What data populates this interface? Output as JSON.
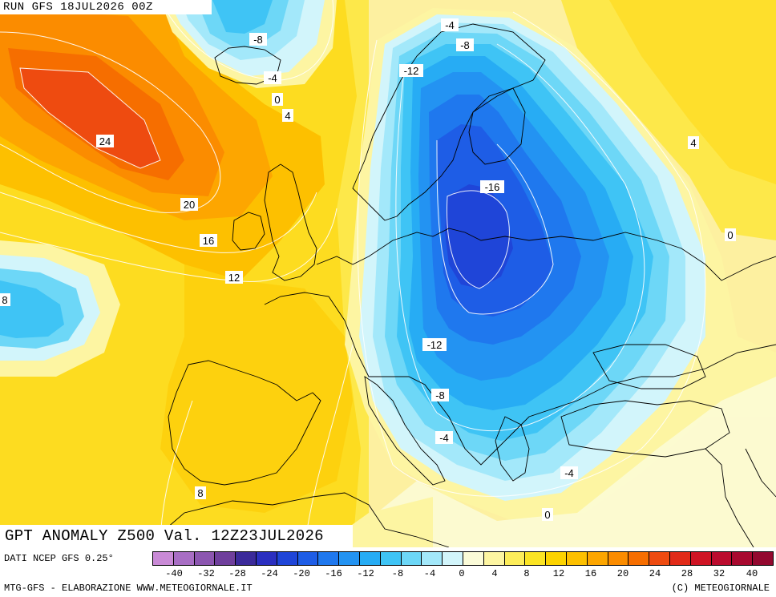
{
  "header": {
    "run_label": "RUN GFS 18JUL2026 00Z"
  },
  "title": {
    "text": "GPT ANOMALY Z500 Val. 12Z23JUL2026"
  },
  "footer": {
    "source": "DATI NCEP GFS 0.25°",
    "credit_left": "MTG-GFS - ELABORAZIONE WWW.METEOGIORNALE.IT",
    "credit_right": "(C) METEOGIORNALE"
  },
  "legend": {
    "colors": [
      "#c98ad6",
      "#a86ec4",
      "#8c56b0",
      "#6f3f9c",
      "#3b2a9a",
      "#2b2fc0",
      "#1f45d8",
      "#1e5de6",
      "#1f78ee",
      "#2393f2",
      "#27acf4",
      "#3fc4f5",
      "#6dd7f7",
      "#a3e8fa",
      "#d2f5fb",
      "#fbfbd8",
      "#fdf5a2",
      "#fded5a",
      "#fbe424",
      "#fcd300",
      "#fdc000",
      "#fda600",
      "#fb8c00",
      "#f66e00",
      "#ee4b10",
      "#e12a18",
      "#cf1424",
      "#bb0c2e",
      "#a8092f",
      "#93082f"
    ],
    "tick_labels": [
      "-40",
      "-32",
      "-28",
      "-24",
      "-20",
      "-16",
      "-12",
      "-8",
      "-4",
      "0",
      "4",
      "8",
      "12",
      "16",
      "20",
      "24",
      "28",
      "32",
      "40"
    ]
  },
  "contour_labels": [
    {
      "id": "n4-top",
      "text": "-4"
    },
    {
      "id": "n8-scand",
      "text": "-8"
    },
    {
      "id": "n8-iceland",
      "text": "-8"
    },
    {
      "id": "n4-iceland",
      "text": "-4"
    },
    {
      "id": "zero-iceland",
      "text": "0"
    },
    {
      "id": "p4-iceland",
      "text": "4"
    },
    {
      "id": "n12-norway",
      "text": "-12"
    },
    {
      "id": "p24",
      "text": "24"
    },
    {
      "id": "p4-east",
      "text": "4"
    },
    {
      "id": "n16",
      "text": "-16"
    },
    {
      "id": "p20",
      "text": "20"
    },
    {
      "id": "zero-east",
      "text": "0"
    },
    {
      "id": "p16",
      "text": "16"
    },
    {
      "id": "p12",
      "text": "12"
    },
    {
      "id": "p8-west",
      "text": "8"
    },
    {
      "id": "n12-balkan",
      "text": "-12"
    },
    {
      "id": "n8-balkan",
      "text": "-8"
    },
    {
      "id": "n4-med",
      "text": "-4"
    },
    {
      "id": "n4-aegean",
      "text": "-4"
    },
    {
      "id": "p8-iberia",
      "text": "8"
    },
    {
      "id": "zero-africa",
      "text": "0"
    }
  ],
  "colors": {
    "background": "#fdf5a2",
    "map_outline": "#000000"
  }
}
